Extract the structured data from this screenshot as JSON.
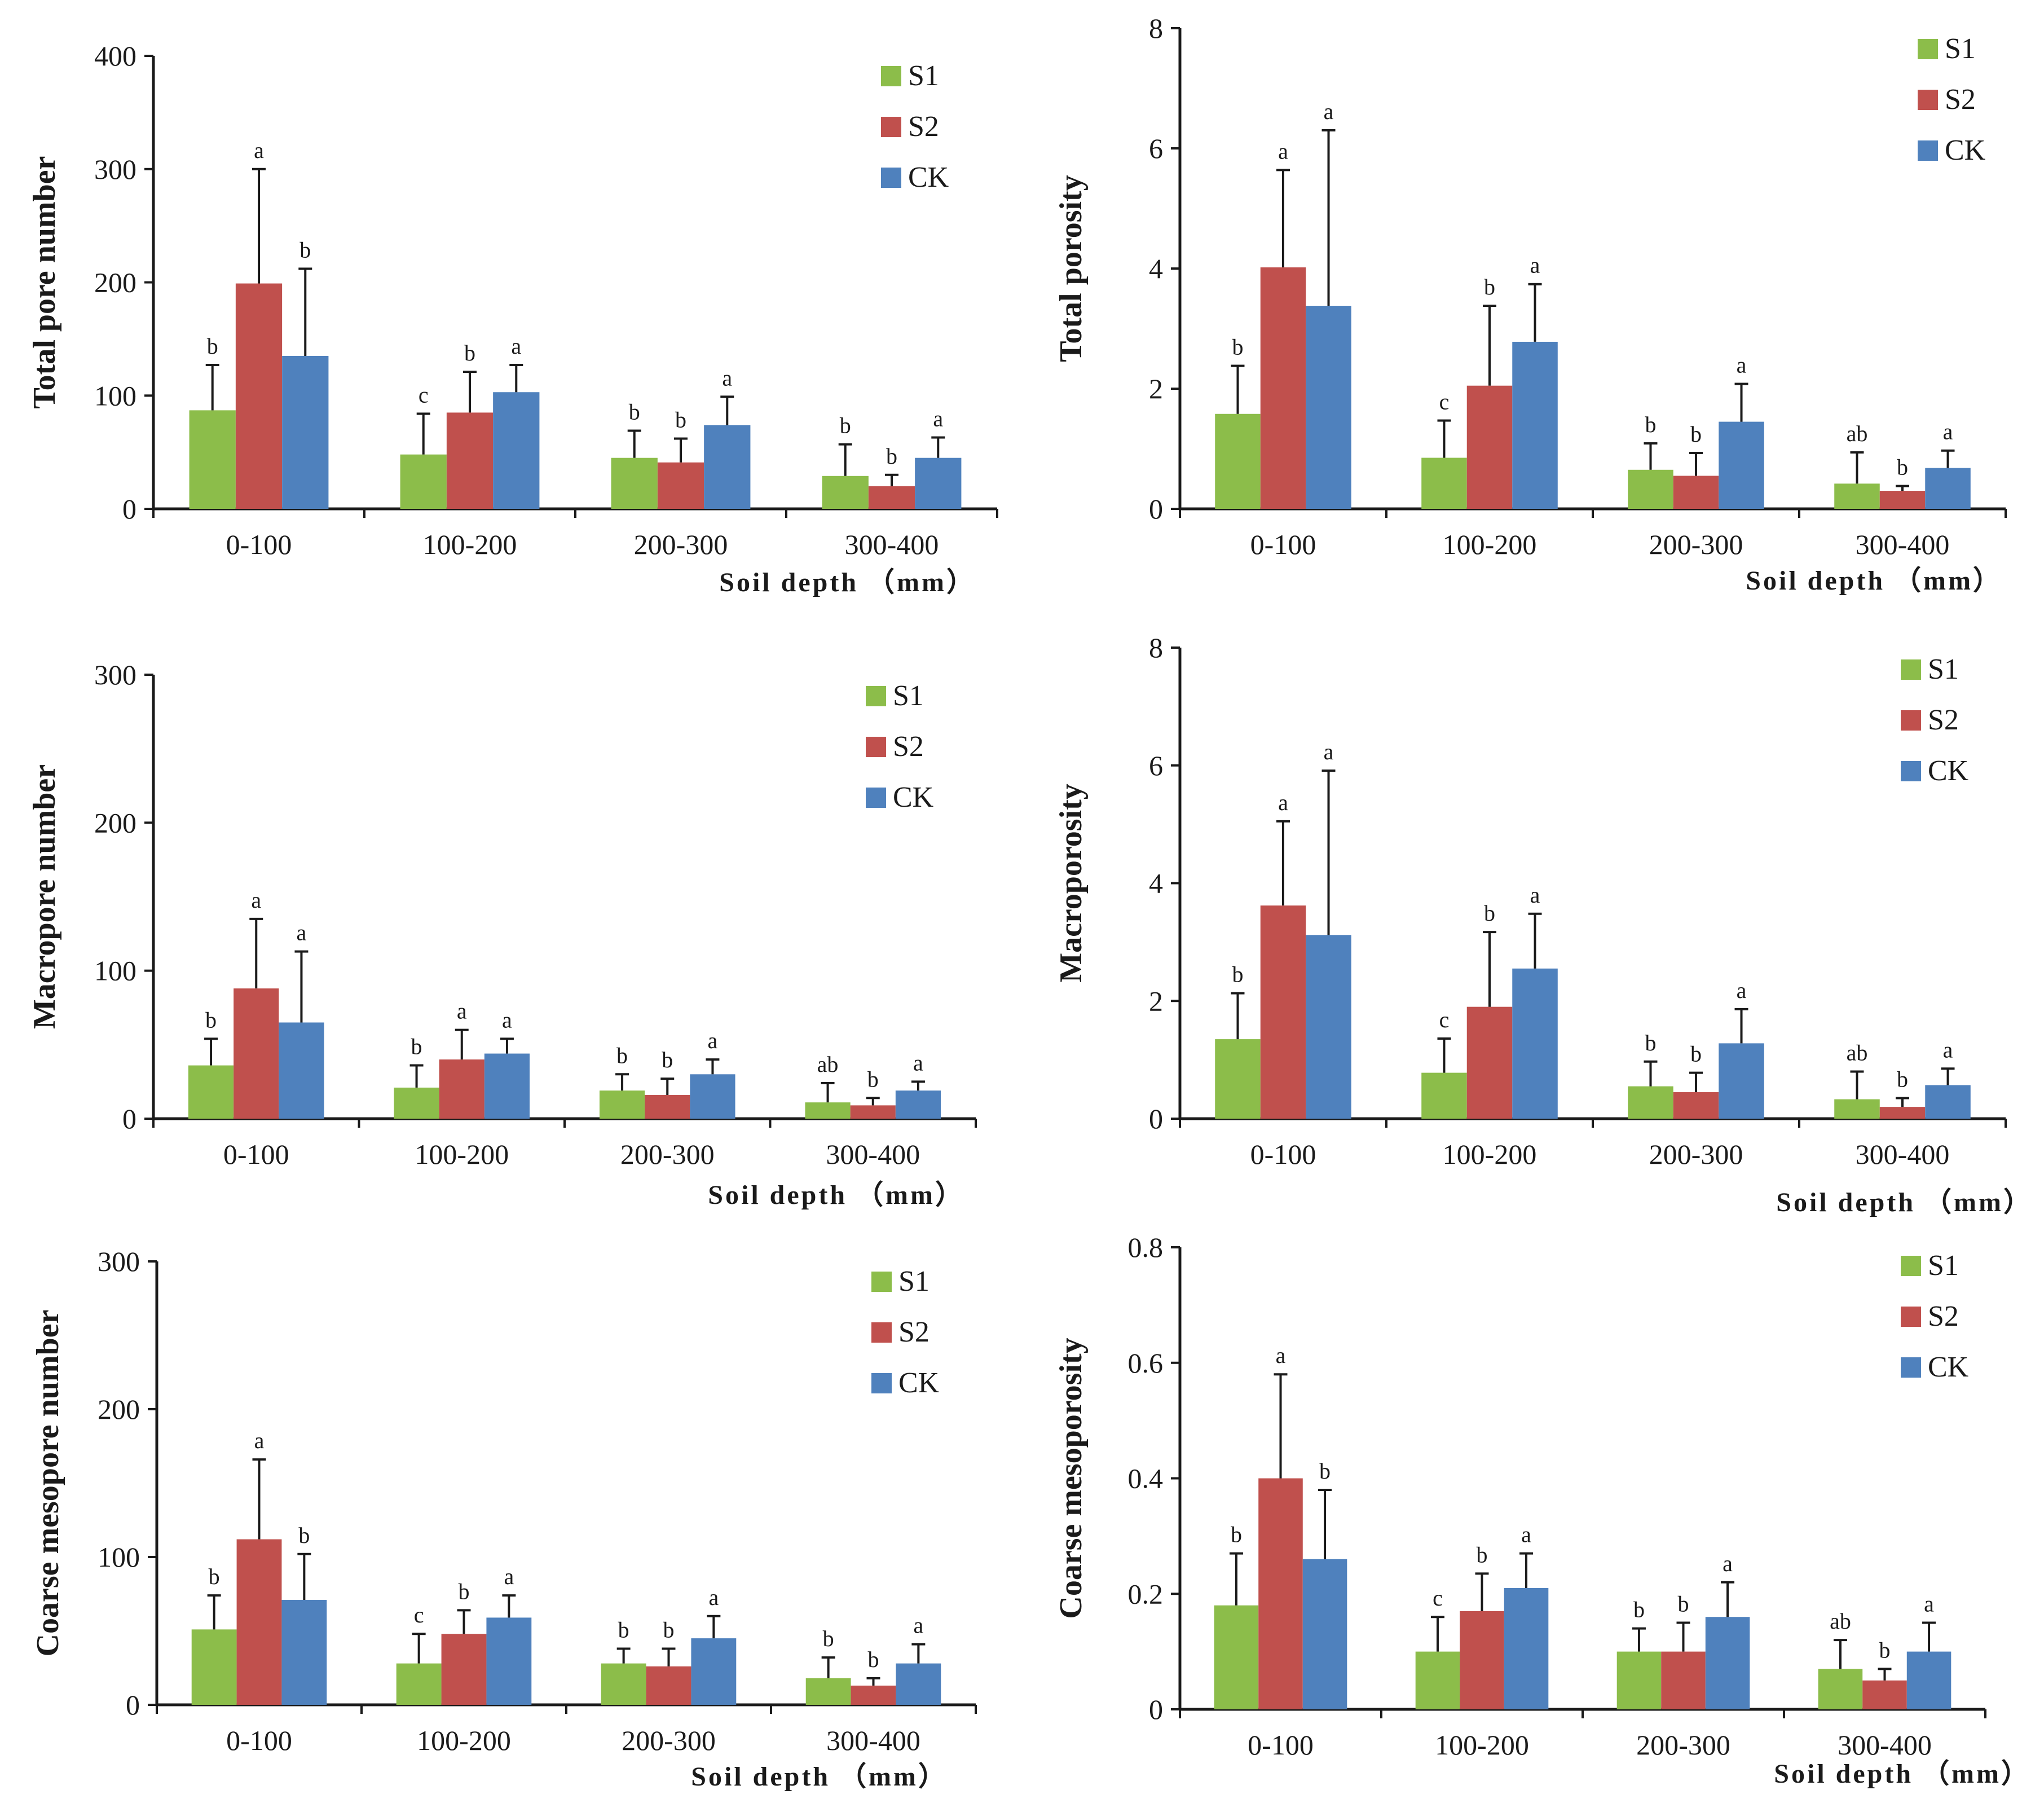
{
  "colors": {
    "S1": "#8cbd4a",
    "S2": "#c0504d",
    "CK": "#4f81bd"
  },
  "chart_data": [
    {
      "type": "bar",
      "ylabel": "Total pore number",
      "xlabel": "Soil depth （mm）",
      "ylim": [
        0,
        400
      ],
      "yticks": [
        "0",
        "100",
        "200",
        "300",
        "400"
      ],
      "categories": [
        "0-100",
        "100-200",
        "200-300",
        "300-400"
      ],
      "legend": {
        "position": "top-right",
        "entries": [
          "S1",
          "S2",
          "CK"
        ]
      },
      "series": [
        {
          "name": "S1",
          "values": [
            87,
            48,
            45,
            29
          ],
          "errors": [
            40,
            36,
            24,
            28
          ],
          "letters": [
            "b",
            "c",
            "b",
            "b"
          ]
        },
        {
          "name": "S2",
          "values": [
            199,
            85,
            41,
            20
          ],
          "errors": [
            101,
            36,
            21,
            10
          ],
          "letters": [
            "a",
            "b",
            "b",
            "b"
          ]
        },
        {
          "name": "CK",
          "values": [
            135,
            103,
            74,
            45
          ],
          "errors": [
            77,
            24,
            25,
            18
          ],
          "letters": [
            "b",
            "a",
            "a",
            "a"
          ]
        }
      ]
    },
    {
      "type": "bar",
      "ylabel": "Total porosity",
      "xlabel": "Soil depth （mm）",
      "ylim": [
        0,
        8
      ],
      "yticks": [
        "0",
        "2",
        "4",
        "6",
        "8"
      ],
      "categories": [
        "0-100",
        "100-200",
        "200-300",
        "300-400"
      ],
      "legend": {
        "position": "top-right",
        "entries": [
          "S1",
          "S2",
          "CK"
        ]
      },
      "series": [
        {
          "name": "S1",
          "values": [
            1.58,
            0.85,
            0.65,
            0.42
          ],
          "errors": [
            0.8,
            0.62,
            0.44,
            0.52
          ],
          "letters": [
            "b",
            "c",
            "b",
            "ab"
          ]
        },
        {
          "name": "S2",
          "values": [
            4.02,
            2.05,
            0.55,
            0.3
          ],
          "errors": [
            1.62,
            1.33,
            0.38,
            0.08
          ],
          "letters": [
            "a",
            "b",
            "b",
            "b"
          ]
        },
        {
          "name": "CK",
          "values": [
            3.38,
            2.78,
            1.45,
            0.68
          ],
          "errors": [
            2.92,
            0.96,
            0.63,
            0.29
          ],
          "letters": [
            "a",
            "a",
            "a",
            "a"
          ]
        }
      ]
    },
    {
      "type": "bar",
      "ylabel": "Macropore number",
      "xlabel": "Soil depth （mm）",
      "ylim": [
        0,
        300
      ],
      "yticks": [
        "0",
        "100",
        "200",
        "300"
      ],
      "categories": [
        "0-100",
        "100-200",
        "200-300",
        "300-400"
      ],
      "legend": {
        "position": "top-right",
        "entries": [
          "S1",
          "S2",
          "CK"
        ]
      },
      "series": [
        {
          "name": "S1",
          "values": [
            36,
            21,
            19,
            11
          ],
          "errors": [
            18,
            15,
            11,
            13
          ],
          "letters": [
            "b",
            "b",
            "b",
            "ab"
          ]
        },
        {
          "name": "S2",
          "values": [
            88,
            40,
            16,
            9
          ],
          "errors": [
            47,
            20,
            11,
            5
          ],
          "letters": [
            "a",
            "a",
            "b",
            "b"
          ]
        },
        {
          "name": "CK",
          "values": [
            65,
            44,
            30,
            19
          ],
          "errors": [
            48,
            10,
            10,
            6
          ],
          "letters": [
            "a",
            "a",
            "a",
            "a"
          ]
        }
      ]
    },
    {
      "type": "bar",
      "ylabel": "Macroporosity",
      "xlabel": "Soil depth （mm）",
      "ylim": [
        0,
        8
      ],
      "yticks": [
        "0",
        "2",
        "4",
        "6",
        "8"
      ],
      "categories": [
        "0-100",
        "100-200",
        "200-300",
        "300-400"
      ],
      "legend": {
        "position": "top-right",
        "entries": [
          "S1",
          "S2",
          "CK"
        ]
      },
      "series": [
        {
          "name": "S1",
          "values": [
            1.35,
            0.78,
            0.55,
            0.33
          ],
          "errors": [
            0.78,
            0.58,
            0.42,
            0.47
          ],
          "letters": [
            "b",
            "c",
            "b",
            "ab"
          ]
        },
        {
          "name": "S2",
          "values": [
            3.62,
            1.9,
            0.45,
            0.2
          ],
          "errors": [
            1.43,
            1.27,
            0.33,
            0.15
          ],
          "letters": [
            "a",
            "b",
            "b",
            "b"
          ]
        },
        {
          "name": "CK",
          "values": [
            3.12,
            2.55,
            1.28,
            0.57
          ],
          "errors": [
            2.79,
            0.93,
            0.58,
            0.28
          ],
          "letters": [
            "a",
            "a",
            "a",
            "a"
          ]
        }
      ]
    },
    {
      "type": "bar",
      "ylabel": "Coarse mesopore number",
      "xlabel": "Soil depth （mm）",
      "ylim": [
        0,
        300
      ],
      "yticks": [
        "0",
        "100",
        "200",
        "300"
      ],
      "categories": [
        "0-100",
        "100-200",
        "200-300",
        "300-400"
      ],
      "legend": {
        "position": "top-right",
        "entries": [
          "S1",
          "S2",
          "CK"
        ]
      },
      "series": [
        {
          "name": "S1",
          "values": [
            51,
            28,
            28,
            18
          ],
          "errors": [
            23,
            20,
            10,
            14
          ],
          "letters": [
            "b",
            "c",
            "b",
            "b"
          ]
        },
        {
          "name": "S2",
          "values": [
            112,
            48,
            26,
            13
          ],
          "errors": [
            54,
            16,
            12,
            5
          ],
          "letters": [
            "a",
            "b",
            "b",
            "b"
          ]
        },
        {
          "name": "CK",
          "values": [
            71,
            59,
            45,
            28
          ],
          "errors": [
            31,
            15,
            15,
            13
          ],
          "letters": [
            "b",
            "a",
            "a",
            "a"
          ]
        }
      ]
    },
    {
      "type": "bar",
      "ylabel": "Coarse mesoporosity",
      "xlabel": "Soil depth （mm）",
      "ylim": [
        0,
        0.8
      ],
      "yticks": [
        "0",
        "0.2",
        "0.4",
        "0.6",
        "0.8"
      ],
      "categories": [
        "0-100",
        "100-200",
        "200-300",
        "300-400"
      ],
      "legend": {
        "position": "top-right",
        "entries": [
          "S1",
          "S2",
          "CK"
        ]
      },
      "series": [
        {
          "name": "S1",
          "values": [
            0.18,
            0.1,
            0.1,
            0.07
          ],
          "errors": [
            0.09,
            0.06,
            0.04,
            0.05
          ],
          "letters": [
            "b",
            "c",
            "b",
            "ab"
          ]
        },
        {
          "name": "S2",
          "values": [
            0.4,
            0.17,
            0.1,
            0.05
          ],
          "errors": [
            0.18,
            0.065,
            0.05,
            0.02
          ],
          "letters": [
            "a",
            "b",
            "b",
            "b"
          ]
        },
        {
          "name": "CK",
          "values": [
            0.26,
            0.21,
            0.16,
            0.1
          ],
          "errors": [
            0.12,
            0.06,
            0.06,
            0.05
          ],
          "letters": [
            "b",
            "a",
            "a",
            "a"
          ]
        }
      ]
    }
  ]
}
